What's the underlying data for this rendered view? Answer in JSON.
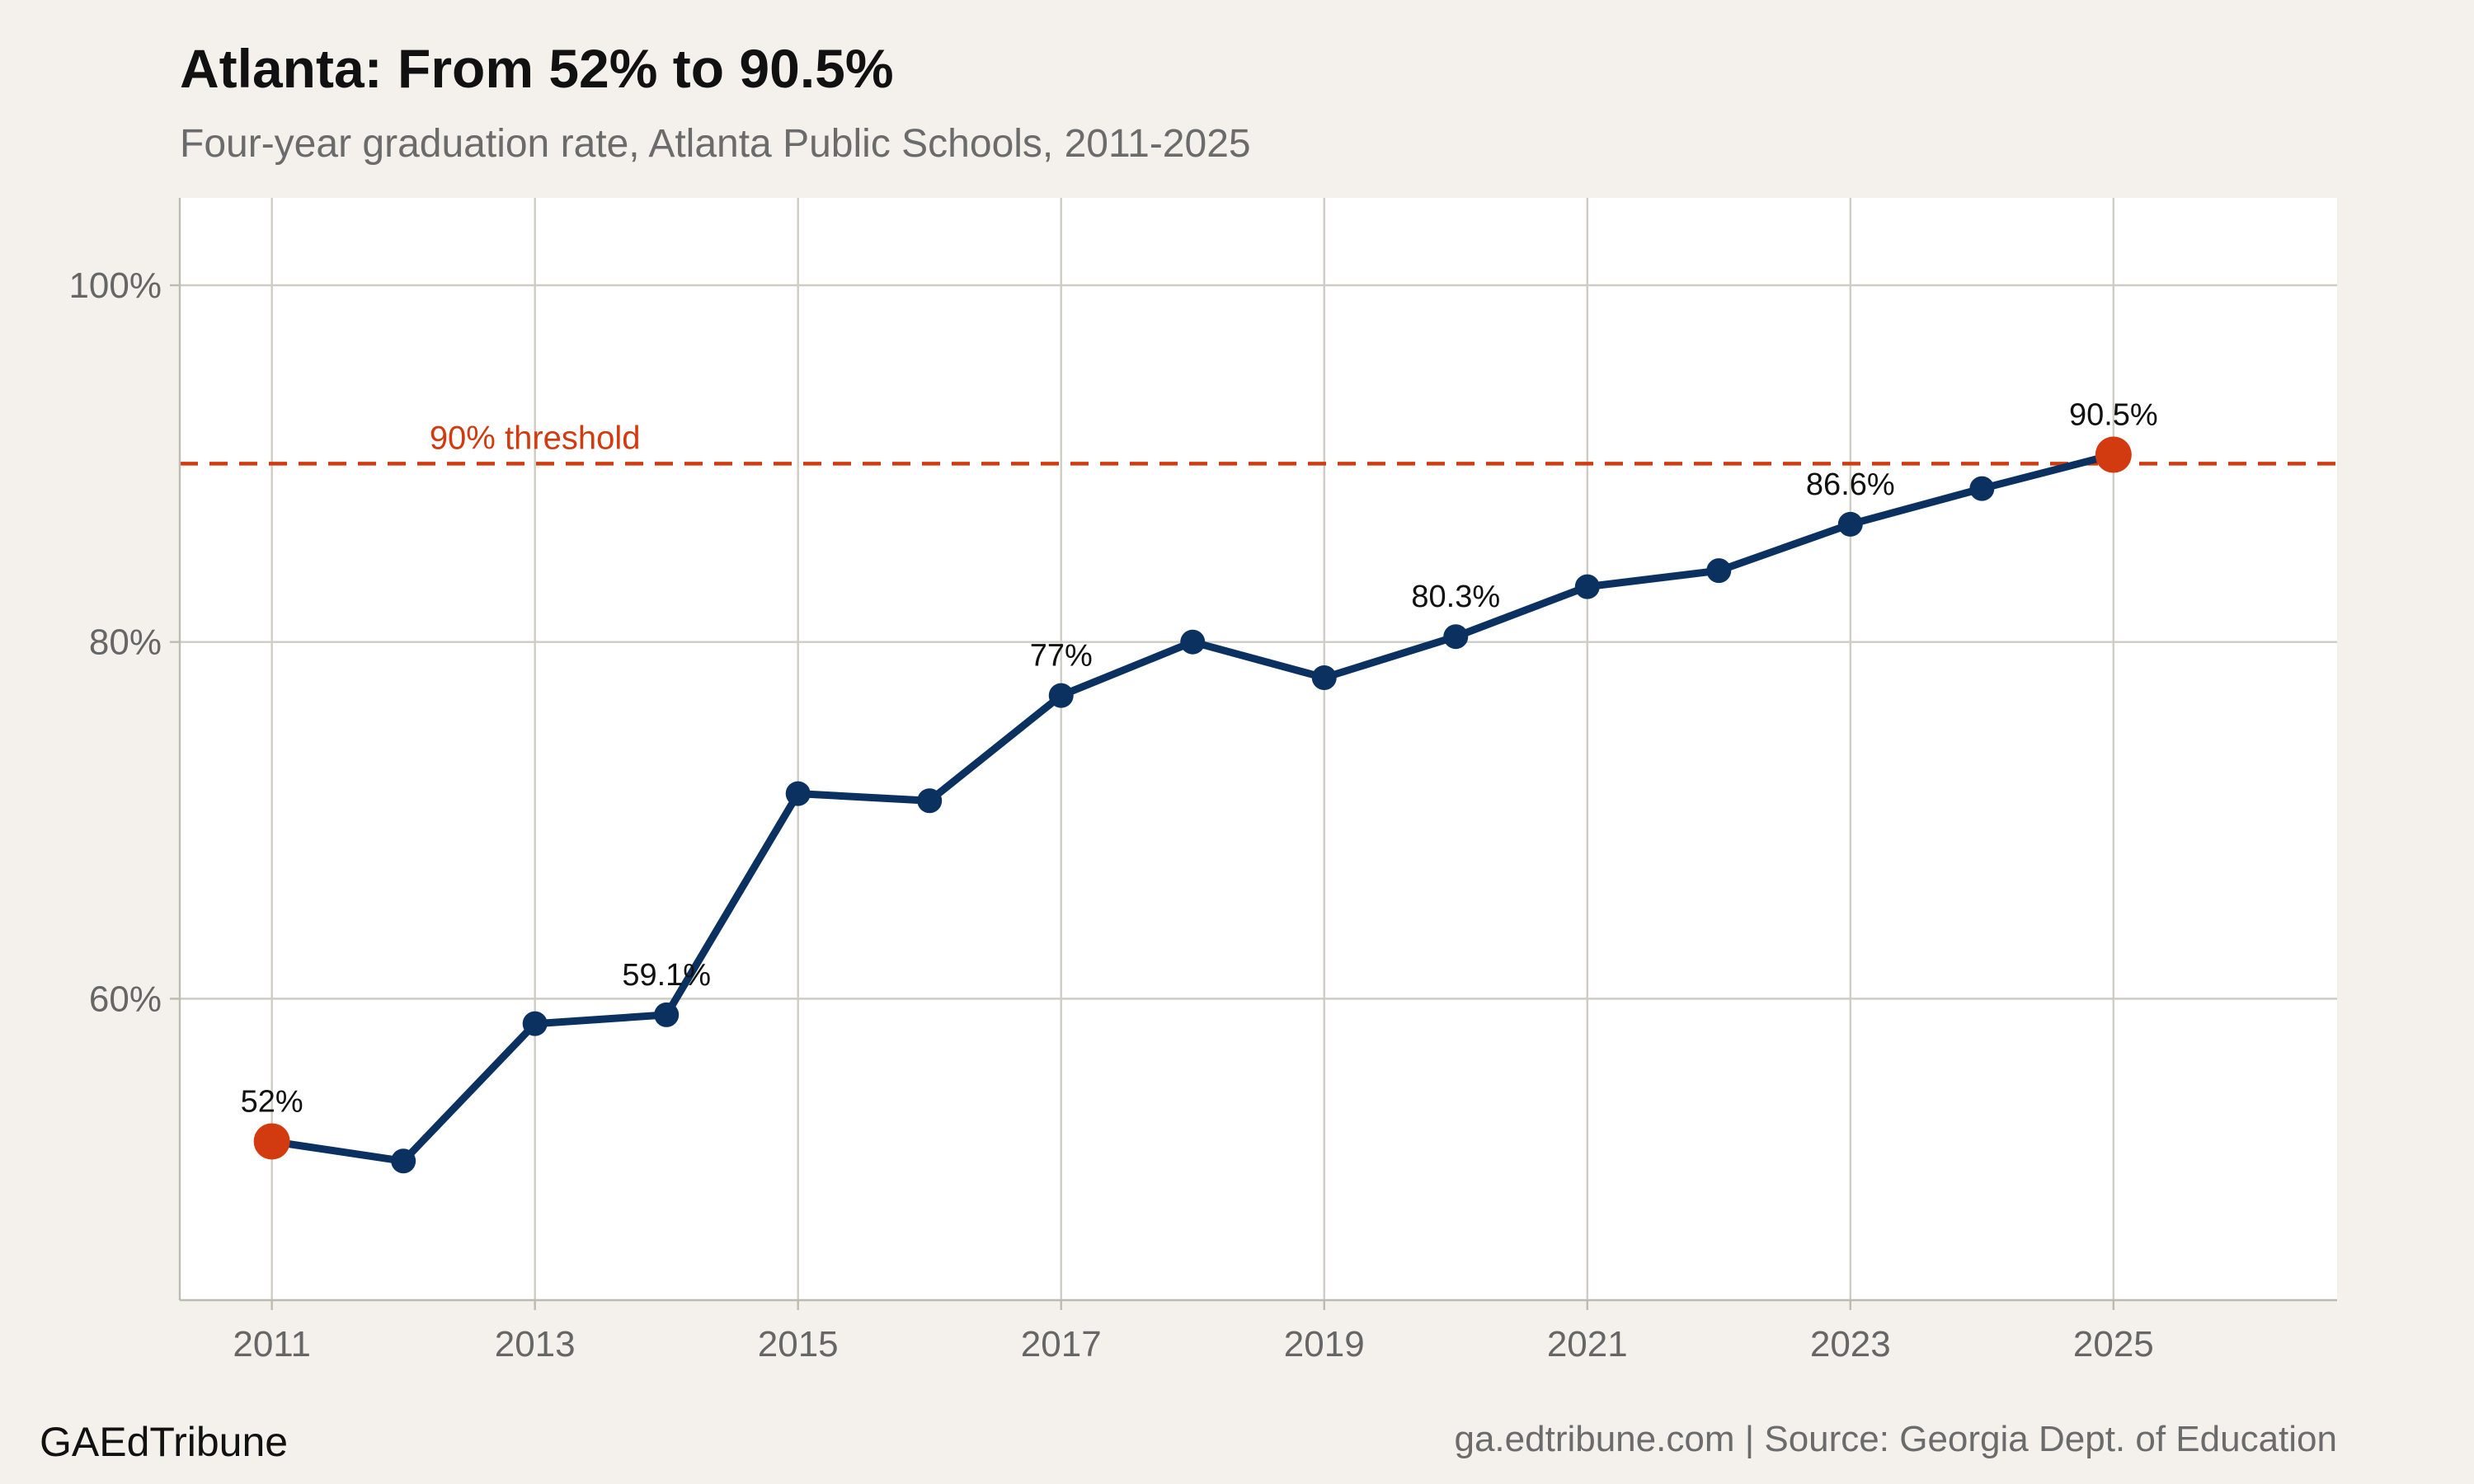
{
  "title": "Atlanta: From 52% to 90.5%",
  "subtitle": "Four-year graduation rate, Atlanta Public Schools, 2011-2025",
  "footer": {
    "brand": "GAEdTribune",
    "source": "ga.edtribune.com | Source: Georgia Dept. of Education"
  },
  "colors": {
    "background": "#f4f1ec",
    "panel": "#ffffff",
    "line": "#0b3160",
    "highlight": "#d23a0f",
    "threshold": "#d23a0f",
    "grid": "#cfccc4"
  },
  "chart_data": {
    "type": "line",
    "x": [
      2011,
      2012,
      2013,
      2014,
      2015,
      2016,
      2017,
      2018,
      2019,
      2020,
      2021,
      2022,
      2023,
      2024,
      2025
    ],
    "series": [
      {
        "values": [
          52.0,
          50.9,
          58.6,
          59.1,
          71.5,
          71.1,
          77.0,
          80.0,
          78.0,
          80.3,
          83.1,
          84.0,
          86.6,
          88.6,
          90.5
        ]
      }
    ],
    "highlighted_points": [
      2011,
      2025
    ],
    "data_labels": [
      {
        "x": 2011,
        "text": "52%"
      },
      {
        "x": 2014,
        "text": "59.1%"
      },
      {
        "x": 2017,
        "text": "77%"
      },
      {
        "x": 2020,
        "text": "80.3%"
      },
      {
        "x": 2023,
        "text": "86.6%"
      },
      {
        "x": 2025,
        "text": "90.5%"
      }
    ],
    "threshold": {
      "value": 90,
      "label": "90% threshold"
    },
    "xticks": [
      "2011",
      "2013",
      "2015",
      "2017",
      "2019",
      "2021",
      "2023",
      "2025"
    ],
    "yticks": [
      {
        "value": 60,
        "label": "60%"
      },
      {
        "value": 80,
        "label": "80%"
      },
      {
        "value": 100,
        "label": "100%"
      }
    ],
    "xlim": [
      2010.3,
      2026.7
    ],
    "ylim": [
      43.1,
      104.9
    ],
    "grid": true,
    "legend": "none"
  }
}
